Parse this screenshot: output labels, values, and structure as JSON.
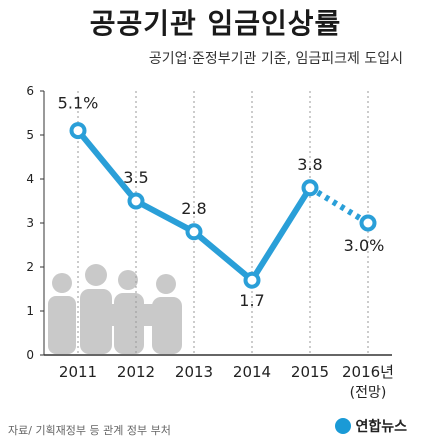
{
  "header": {
    "title": "공공기관 임금인상률",
    "subtitle": "공기업·준정부기관 기준, 임금피크제 도입시"
  },
  "footer": {
    "source": "자료/ 기획재정부 등 관계 정부 부처",
    "brand": "연합뉴스"
  },
  "colors": {
    "line": "#2a9fd8",
    "marker_fill": "#ffffff",
    "axis": "#333333",
    "grid": "#999999",
    "silhouette": "#c9c9c9"
  },
  "chart_data": {
    "type": "line",
    "title": "공공기관 임금인상률",
    "categories": [
      "2011",
      "2012",
      "2013",
      "2014",
      "2015",
      "2016년"
    ],
    "category_note": "(전망)",
    "values": [
      5.1,
      3.5,
      2.8,
      1.7,
      3.8,
      3.0
    ],
    "value_labels": [
      "5.1%",
      "3.5",
      "2.8",
      "1.7",
      "3.8",
      "3.0%"
    ],
    "last_segment_style": "dashed",
    "yticks": [
      0,
      1,
      2,
      3,
      4,
      5,
      6
    ],
    "ylim": [
      0,
      6
    ],
    "xlabel": "",
    "ylabel": "",
    "grid": "vertical-dotted",
    "legend": "none"
  }
}
